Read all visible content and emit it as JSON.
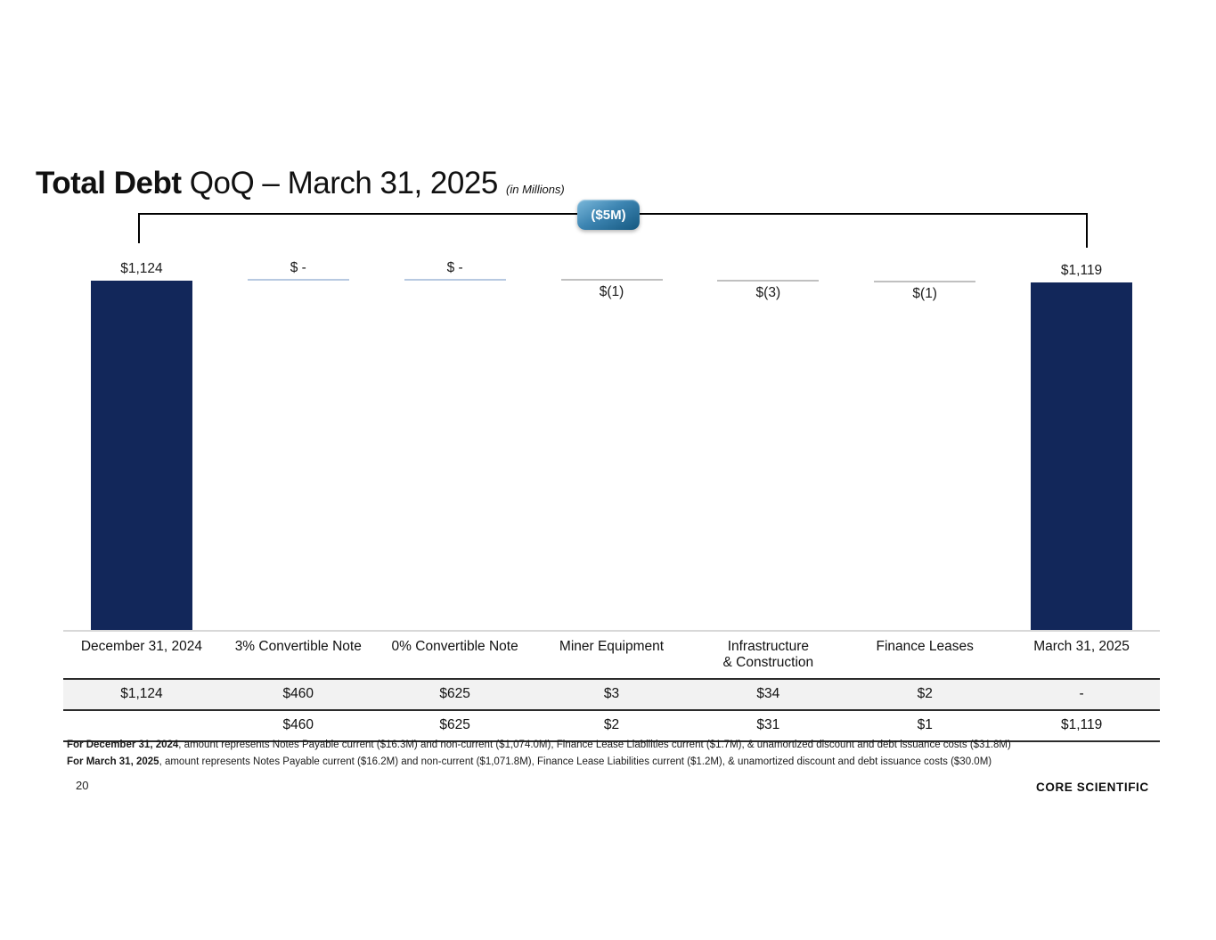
{
  "title": {
    "bold": "Total Debt",
    "regular": "QoQ – March 31, 2025",
    "suffix": "(in Millions)"
  },
  "badge": {
    "label": "($5M)"
  },
  "chart_data": {
    "type": "waterfall",
    "title": "Total Debt QoQ – March 31, 2025 (in Millions)",
    "unit": "USD millions",
    "total_change_label": "($5M)",
    "ylim": [
      0,
      1124
    ],
    "grid": false,
    "categories": [
      "December 31, 2024",
      "3% Convertible Note",
      "0% Convertible Note",
      "Miner Equipment",
      "Infrastructure\n& Construction",
      "Finance Leases",
      "March 31, 2025"
    ],
    "columns": [
      {
        "category": "December 31, 2024",
        "kind": "total",
        "value": 1124,
        "label": "$1,124",
        "label_pos": "above",
        "marker": "bar"
      },
      {
        "category": "3% Convertible Note",
        "kind": "delta",
        "value": 0,
        "label": "$ -",
        "label_pos": "above",
        "marker": "lightblue"
      },
      {
        "category": "0% Convertible Note",
        "kind": "delta",
        "value": 0,
        "label": "$ -",
        "label_pos": "above",
        "marker": "lightblue"
      },
      {
        "category": "Miner Equipment",
        "kind": "delta",
        "value": -1,
        "label": "$(1)",
        "label_pos": "below",
        "marker": "gray"
      },
      {
        "category": "Infrastructure\n& Construction",
        "kind": "delta",
        "value": -3,
        "label": "$(3)",
        "label_pos": "below",
        "marker": "gray"
      },
      {
        "category": "Finance Leases",
        "kind": "delta",
        "value": -1,
        "label": "$(1)",
        "label_pos": "below",
        "marker": "gray"
      },
      {
        "category": "March 31, 2025",
        "kind": "total",
        "value": 1119,
        "label": "$1,119",
        "label_pos": "above",
        "marker": "bar"
      }
    ]
  },
  "table": {
    "rows": [
      [
        "$1,124",
        "$460",
        "$625",
        "$3",
        "$34",
        "$2",
        "-"
      ],
      [
        "",
        "$460",
        "$625",
        "$2",
        "$31",
        "$1",
        "$1,119"
      ]
    ]
  },
  "footnotes": [
    {
      "bold": "For December 31, 2024",
      "text": ", amount represents Notes Payable current ($16.3M) and non-current ($1,074.0M), Finance Lease Liabilities current ($1.7M), & unamortized discount and debt issuance costs  ($31.8M)"
    },
    {
      "bold": "For March 31, 2025",
      "text": ", amount represents Notes Payable current ($16.2M) and non-current ($1,071.8M), Finance Lease Liabilities current ($1.2M), & unamortized discount and debt issuance costs  ($30.0M)"
    }
  ],
  "page_number": "20",
  "logo": "CORE SCIENTIFIC",
  "colors": {
    "bar": "#12275a",
    "marker_lightblue": "#b7c9e1",
    "marker_gray": "#c0c0c0",
    "badge_top": "#7cb9db",
    "badge_bottom": "#14577f",
    "table_row_bg": "#f2f2f2"
  }
}
